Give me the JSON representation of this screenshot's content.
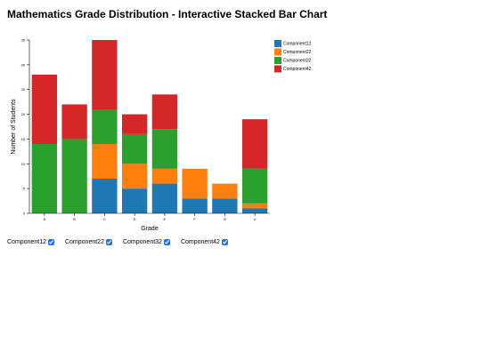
{
  "page": {
    "title": "Mathematics Grade Distribution - Interactive Stacked Bar Chart"
  },
  "chart_data": {
    "type": "bar",
    "stacked": true,
    "title": "Mathematics Grade Distribution - Interactive Stacked Bar Chart",
    "xlabel": "Grade",
    "ylabel": "Number of Students",
    "categories": [
      "A",
      "B",
      "C",
      "D",
      "E",
      "F",
      "G",
      "U"
    ],
    "ylim": [
      0,
      35
    ],
    "yticks": [
      0,
      5,
      10,
      15,
      20,
      25,
      30,
      35
    ],
    "grid": false,
    "legend": "top-right",
    "series": [
      {
        "name": "Component12",
        "color": "#1f77b4",
        "values": [
          0,
          0,
          7,
          5,
          6,
          3,
          3,
          1
        ]
      },
      {
        "name": "Component22",
        "color": "#ff7f0e",
        "values": [
          0,
          0,
          7,
          5,
          3,
          6,
          3,
          1
        ]
      },
      {
        "name": "Component32",
        "color": "#2ca02c",
        "values": [
          14,
          15,
          7,
          6,
          8,
          0,
          0,
          7
        ]
      },
      {
        "name": "Component42",
        "color": "#d62728",
        "values": [
          14,
          7,
          14,
          4,
          7,
          0,
          0,
          10
        ]
      }
    ]
  },
  "controls": {
    "toggles": [
      {
        "label": "Component12",
        "checked": true
      },
      {
        "label": "Component22",
        "checked": true
      },
      {
        "label": "Component32",
        "checked": true
      },
      {
        "label": "Component42",
        "checked": true
      }
    ]
  }
}
